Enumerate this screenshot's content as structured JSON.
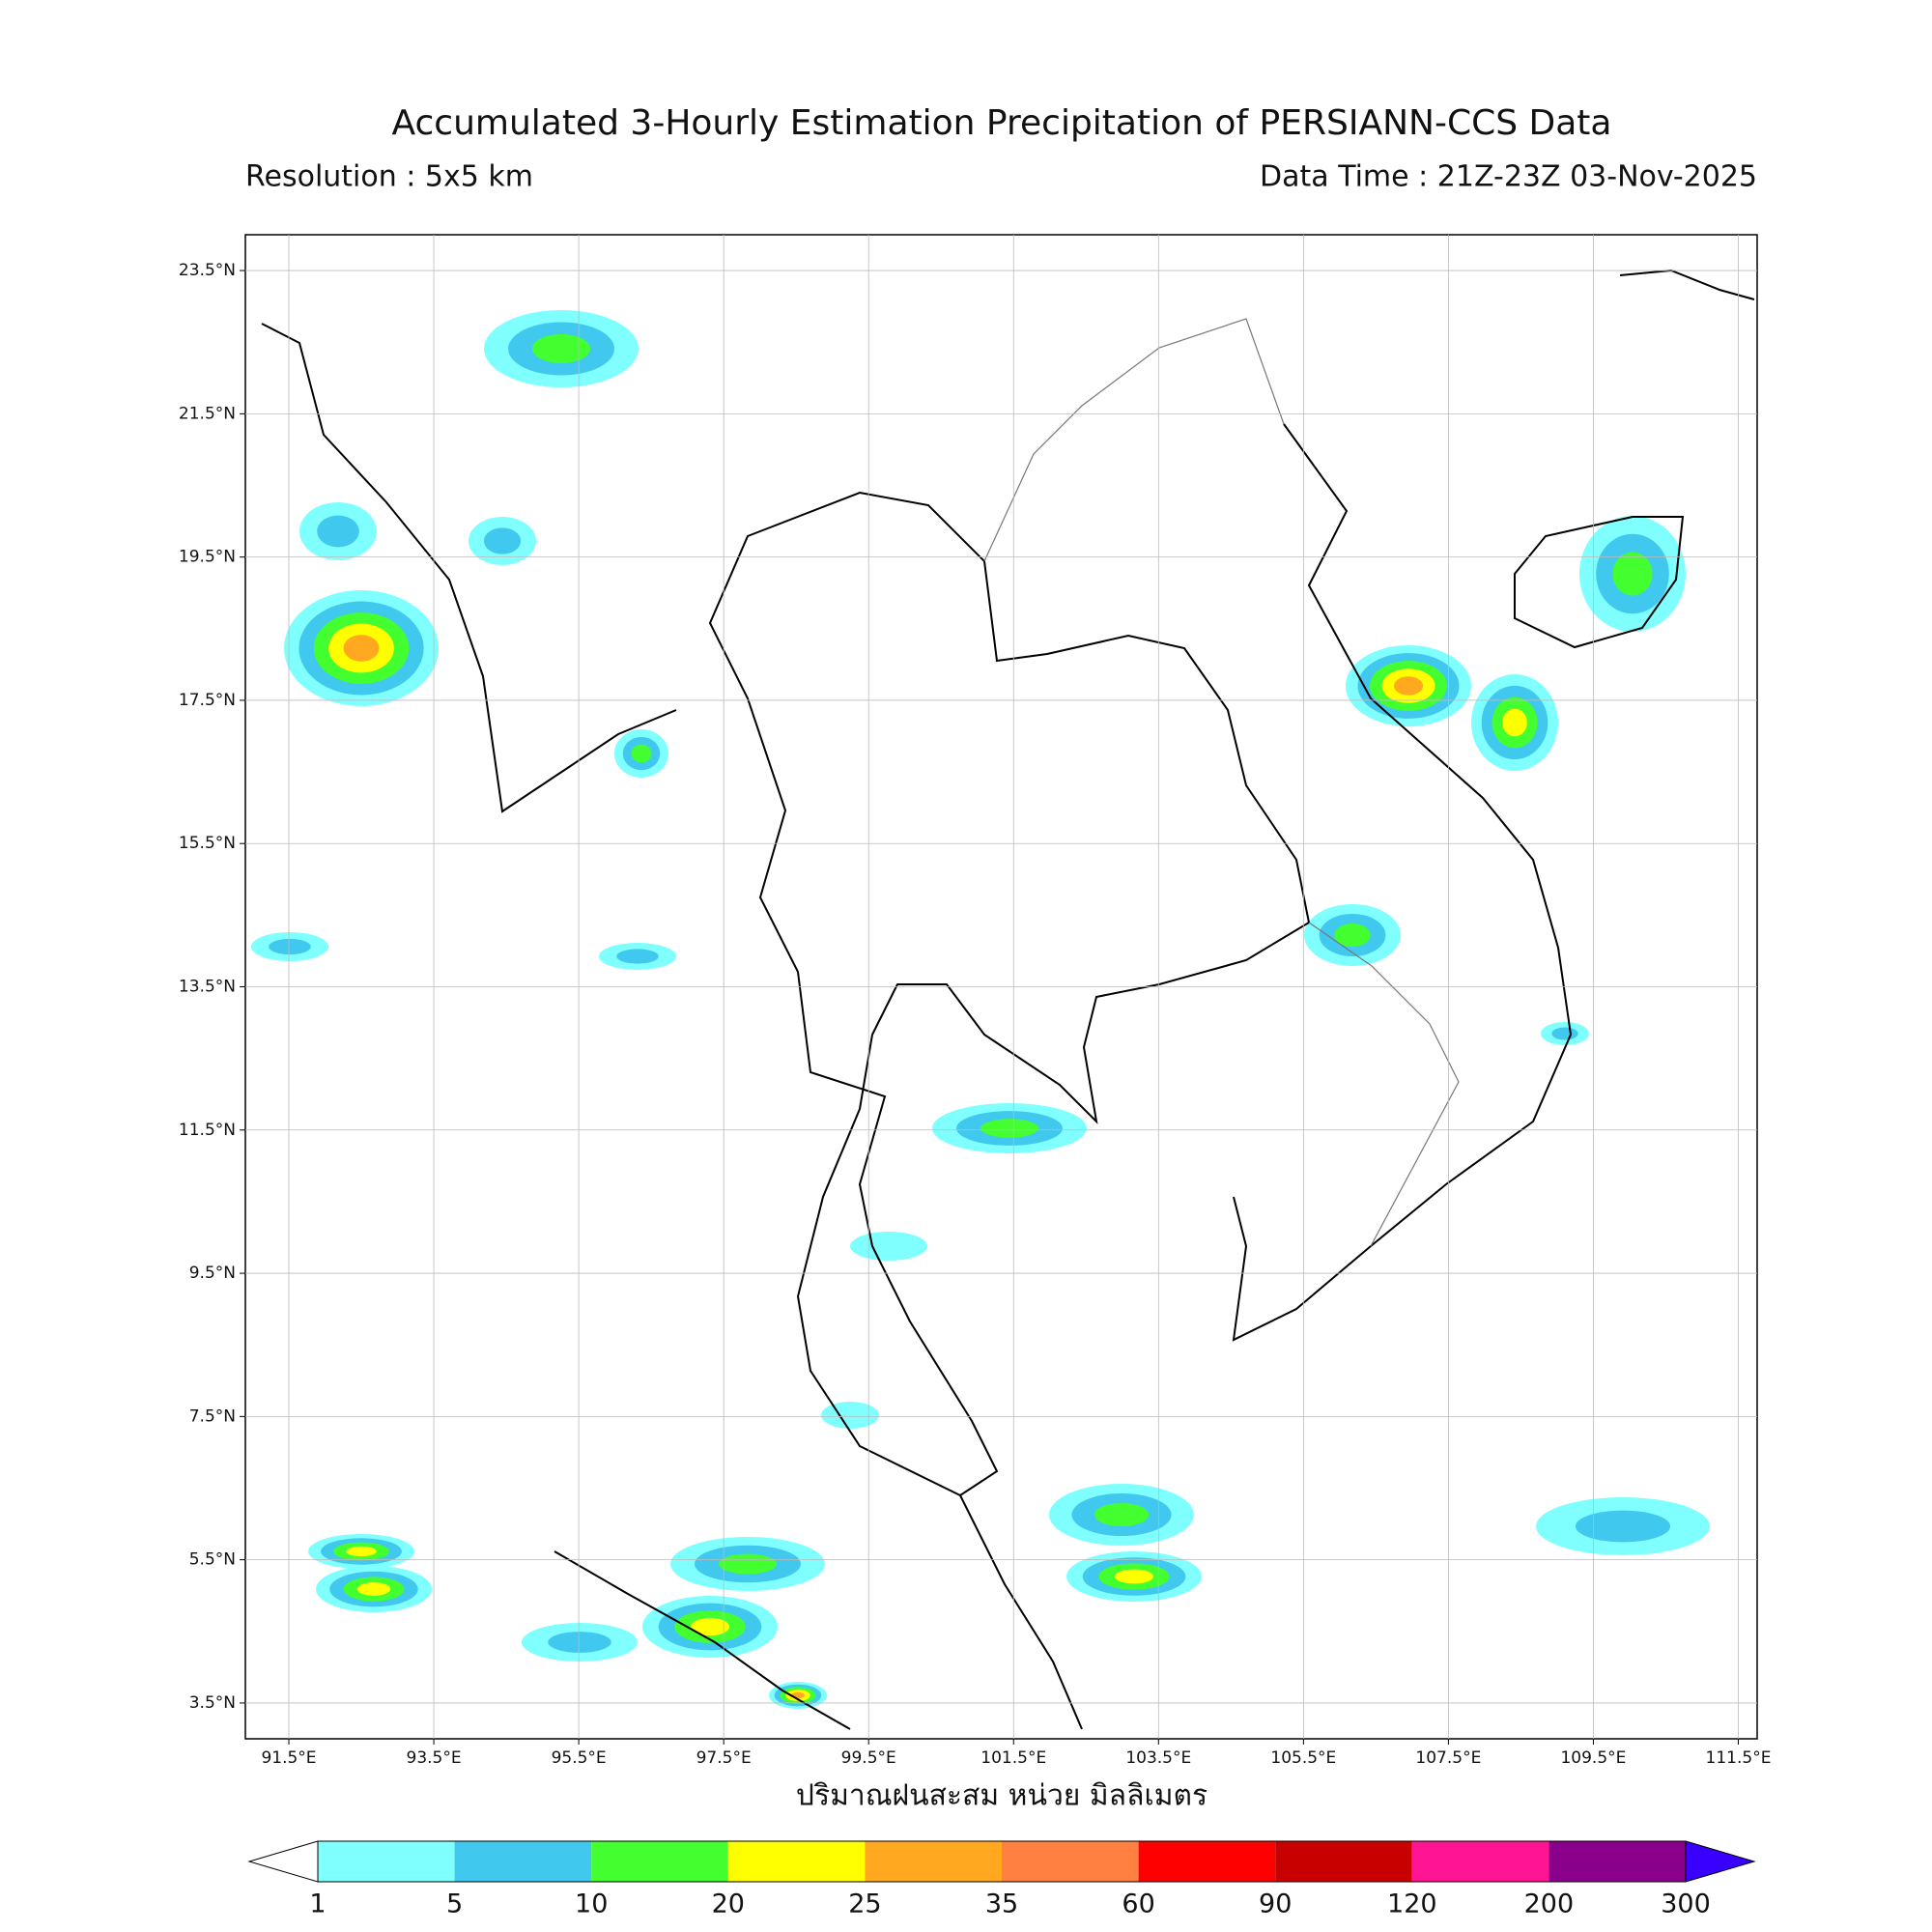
{
  "header": {
    "title": "Accumulated 3-Hourly Estimation Precipitation of PERSIANN-CCS Data",
    "resolution": "Resolution : 5x5 km",
    "data_time": "Data Time : 21Z-23Z 03-Nov-2025"
  },
  "map": {
    "lonlim": [
      90.9,
      111.76
    ],
    "latlim": [
      3.0,
      24.0
    ],
    "grid": true,
    "lon_ticks": [
      {
        "value": 91.5,
        "label": "91.5°E"
      },
      {
        "value": 93.5,
        "label": "93.5°E"
      },
      {
        "value": 95.5,
        "label": "95.5°E"
      },
      {
        "value": 97.5,
        "label": "97.5°E"
      },
      {
        "value": 99.5,
        "label": "99.5°E"
      },
      {
        "value": 101.5,
        "label": "101.5°E"
      },
      {
        "value": 103.5,
        "label": "103.5°E"
      },
      {
        "value": 105.5,
        "label": "105.5°E"
      },
      {
        "value": 107.5,
        "label": "107.5°E"
      },
      {
        "value": 109.5,
        "label": "109.5°E"
      },
      {
        "value": 111.5,
        "label": "111.5°E"
      }
    ],
    "lat_ticks": [
      {
        "value": 3.5,
        "label": "3.5°N"
      },
      {
        "value": 5.5,
        "label": "5.5°N"
      },
      {
        "value": 7.5,
        "label": "7.5°N"
      },
      {
        "value": 9.5,
        "label": "9.5°N"
      },
      {
        "value": 11.5,
        "label": "11.5°N"
      },
      {
        "value": 13.5,
        "label": "13.5°N"
      },
      {
        "value": 15.5,
        "label": "15.5°N"
      },
      {
        "value": 17.5,
        "label": "17.5°N"
      },
      {
        "value": 19.5,
        "label": "19.5°N"
      },
      {
        "value": 21.5,
        "label": "21.5°N"
      },
      {
        "value": 23.5,
        "label": "23.5°N"
      }
    ],
    "xlabel": "ปริมาณฝนสะสม หน่วย มิลลิเมตร"
  },
  "colorbar": {
    "levels": [
      1,
      5,
      10,
      20,
      25,
      35,
      60,
      90,
      120,
      200,
      300
    ],
    "colors": [
      "#80ffff",
      "#40c8ee",
      "#44ff30",
      "#ffff00",
      "#ffa820",
      "#ff8040",
      "#ff0000",
      "#c80000",
      "#ff1493",
      "#8b008b"
    ],
    "under_color": "#ffffff",
    "over_color": "#3a00ff"
  }
}
